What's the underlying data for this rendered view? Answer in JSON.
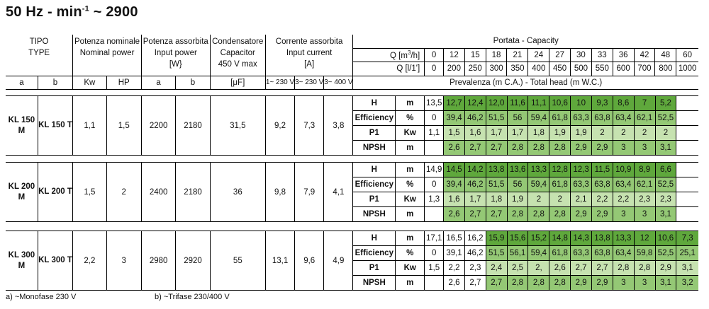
{
  "title": {
    "main": "50 Hz - min",
    "exp": "-1",
    "tail": " ~ 2900"
  },
  "header": {
    "tipo": "TIPO",
    "type": "TYPE",
    "pot_nom": "Potenza nominale",
    "nom_power": "Nominal power",
    "pot_ass": "Potenza assorbita",
    "input_power": "Input power",
    "w_unit": "[W}",
    "cond": "Condensatore",
    "capacitor": "Capacitor",
    "cond_v": "450 V max",
    "corr": "Corrente assorbita",
    "input_current": "Input current",
    "a_unit": "[A]",
    "portata": "Portata - ",
    "capacity": "Capacity",
    "q_m3h": "Q [m",
    "q_m3h_sup": "3",
    "q_m3h_tail": "/h]",
    "q_l1": "Q [l/1']",
    "q_m3h_values": [
      "0",
      "12",
      "15",
      "18",
      "21",
      "24",
      "27",
      "30",
      "33",
      "36",
      "42",
      "48",
      "60"
    ],
    "q_l1_values": [
      "0",
      "200",
      "250",
      "300",
      "350",
      "400",
      "450",
      "500",
      "550",
      "600",
      "700",
      "800",
      "1000"
    ],
    "sub": {
      "a": "a",
      "b": "b",
      "kw": "Kw",
      "hp": "HP",
      "pa": "a",
      "pb": "b",
      "uf": "[μF]",
      "c1": "1~ 230 V",
      "c2": "3~ 230 V",
      "c3": "3~ 400 V"
    },
    "prevalenza": "Prevalenza (m C.A.) - ",
    "total_head": "Total head (m W.C.)"
  },
  "models": [
    {
      "a": "KL 150 M",
      "b": "KL 150 T",
      "kw": "1,1",
      "hp": "1,5",
      "pa": "2200",
      "pb": "2180",
      "uf": "31,5",
      "c1": "9,2",
      "c2": "7,3",
      "c3": "3,8",
      "rows": [
        {
          "label": "H",
          "unit": "m",
          "values": [
            "13,5",
            "12,7",
            "12,4",
            "12,0",
            "11,6",
            "11,1",
            "10,6",
            "10",
            "9,3",
            "8,6",
            "7",
            "5,2",
            ""
          ],
          "shades": [
            0,
            1,
            1,
            1,
            1,
            1,
            1,
            1,
            1,
            1,
            1,
            1,
            0
          ]
        },
        {
          "label": "Efficiency",
          "unit": "%",
          "values": [
            "0",
            "39,4",
            "46,2",
            "51,5",
            "56",
            "59,4",
            "61,8",
            "63,3",
            "63,8",
            "63,4",
            "62,1",
            "52,5",
            ""
          ],
          "shades": [
            0,
            2,
            2,
            2,
            2,
            2,
            2,
            2,
            2,
            2,
            2,
            2,
            0
          ]
        },
        {
          "label": "P1",
          "unit": "Kw",
          "values": [
            "1,1",
            "1,5",
            "1,6",
            "1,7",
            "1,7",
            "1,8",
            "1,9",
            "1,9",
            "2",
            "2",
            "2",
            "2",
            ""
          ],
          "shades": [
            0,
            3,
            3,
            3,
            3,
            3,
            3,
            3,
            3,
            3,
            3,
            3,
            0
          ]
        },
        {
          "label": "NPSH",
          "unit": "m",
          "values": [
            "",
            "2,6",
            "2,7",
            "2,7",
            "2,8",
            "2,8",
            "2,8",
            "2,9",
            "2,9",
            "3",
            "3",
            "3,1",
            ""
          ],
          "shades": [
            0,
            2,
            2,
            2,
            2,
            2,
            2,
            2,
            2,
            2,
            2,
            2,
            0
          ]
        }
      ]
    },
    {
      "a": "KL 200 M",
      "b": "KL 200 T",
      "kw": "1,5",
      "hp": "2",
      "pa": "2400",
      "pb": "2180",
      "uf": "36",
      "c1": "9,8",
      "c2": "7,9",
      "c3": "4,1",
      "rows": [
        {
          "label": "H",
          "unit": "m",
          "values": [
            "14,9",
            "14,5",
            "14,2",
            "13,8",
            "13,6",
            "13,3",
            "12,8",
            "12,3",
            "11,5",
            "10,9",
            "8,9",
            "6,6",
            ""
          ],
          "shades": [
            0,
            1,
            1,
            1,
            1,
            1,
            1,
            1,
            1,
            1,
            1,
            1,
            0
          ]
        },
        {
          "label": "Efficiency",
          "unit": "%",
          "values": [
            "0",
            "39,4",
            "46,2",
            "51,5",
            "56",
            "59,4",
            "61,8",
            "63,3",
            "63,8",
            "63,4",
            "62,1",
            "52,5",
            ""
          ],
          "shades": [
            0,
            2,
            2,
            2,
            2,
            2,
            2,
            2,
            2,
            2,
            2,
            2,
            0
          ]
        },
        {
          "label": "P1",
          "unit": "Kw",
          "values": [
            "1,3",
            "1,6",
            "1,7",
            "1,8",
            "1,9",
            "2",
            "2",
            "2,1",
            "2,2",
            "2,2",
            "2,3",
            "2,3",
            ""
          ],
          "shades": [
            0,
            3,
            3,
            3,
            3,
            3,
            3,
            3,
            3,
            3,
            3,
            3,
            0
          ]
        },
        {
          "label": "NPSH",
          "unit": "m",
          "values": [
            "",
            "2,6",
            "2,7",
            "2,7",
            "2,8",
            "2,8",
            "2,8",
            "2,9",
            "2,9",
            "3",
            "3",
            "3,1",
            ""
          ],
          "shades": [
            0,
            2,
            2,
            2,
            2,
            2,
            2,
            2,
            2,
            2,
            2,
            2,
            0
          ]
        }
      ]
    },
    {
      "a": "KL 300 M",
      "b": "KL 300 T",
      "kw": "2,2",
      "hp": "3",
      "pa": "2980",
      "pb": "2920",
      "uf": "55",
      "c1": "13,1",
      "c2": "9,6",
      "c3": "4,9",
      "rows": [
        {
          "label": "H",
          "unit": "m",
          "values": [
            "17,1",
            "16,5",
            "16,2",
            "15,9",
            "15,6",
            "15,2",
            "14,8",
            "14,3",
            "13,8",
            "13,3",
            "12",
            "10,6",
            "7,3"
          ],
          "shades": [
            0,
            0,
            0,
            1,
            1,
            1,
            1,
            1,
            1,
            1,
            1,
            1,
            1
          ]
        },
        {
          "label": "Efficiency",
          "unit": "%",
          "values": [
            "0",
            "39,1",
            "46,2",
            "51,5",
            "56,1",
            "59,4",
            "61,8",
            "63,3",
            "63,8",
            "63,4",
            "59,8",
            "52,5",
            "25,1"
          ],
          "shades": [
            0,
            0,
            0,
            2,
            2,
            2,
            2,
            2,
            2,
            2,
            2,
            2,
            2
          ]
        },
        {
          "label": "P1",
          "unit": "Kw",
          "values": [
            "1,5",
            "2,2",
            "2,3",
            "2,4",
            "2,5",
            "2,",
            "2,6",
            "2,7",
            "2,7",
            "2,8",
            "2,8",
            "2,9",
            "3,1"
          ],
          "shades": [
            0,
            0,
            0,
            3,
            3,
            3,
            3,
            3,
            3,
            3,
            3,
            3,
            3
          ]
        },
        {
          "label": "NPSH",
          "unit": "m",
          "values": [
            "",
            "2,6",
            "2,7",
            "2,7",
            "2,8",
            "2,8",
            "2,8",
            "2,9",
            "2,9",
            "3",
            "3",
            "3,1",
            "3,2"
          ],
          "shades": [
            0,
            0,
            0,
            2,
            2,
            2,
            2,
            2,
            2,
            2,
            2,
            2,
            2
          ]
        }
      ]
    }
  ],
  "footer": {
    "a": "a) ~Monofase 230 V",
    "b": "b) ~Trifase 230/400 V"
  }
}
